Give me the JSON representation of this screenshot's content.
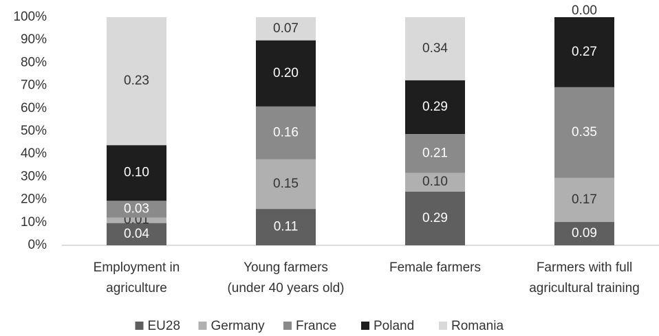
{
  "chart_data": {
    "type": "bar",
    "stacking": "percent",
    "categories": [
      [
        "Employment in",
        "agriculture"
      ],
      [
        "Young farmers",
        "(under 40 years old)"
      ],
      [
        "Female farmers"
      ],
      [
        "Farmers with full",
        "agricultural training"
      ]
    ],
    "series": [
      {
        "name": "EU28",
        "color": "#5f5f5f",
        "values": [
          0.04,
          0.11,
          0.29,
          0.09
        ],
        "value_labels": [
          "0.04",
          "0.11",
          "0.29",
          "0.09"
        ]
      },
      {
        "name": "Germany",
        "color": "#b0b0b0",
        "values": [
          0.01,
          0.15,
          0.1,
          0.17
        ],
        "value_labels": [
          "0.01",
          "0.15",
          "0.10",
          "0.17"
        ]
      },
      {
        "name": "France",
        "color": "#8a8a8a",
        "values": [
          0.03,
          0.16,
          0.21,
          0.35
        ],
        "value_labels": [
          "0.03",
          "0.16",
          "0.21",
          "0.35"
        ]
      },
      {
        "name": "Poland",
        "color": "#1e1e1e",
        "values": [
          0.1,
          0.2,
          0.29,
          0.27
        ],
        "value_labels": [
          "0.10",
          "0.20",
          "0.29",
          "0.27"
        ]
      },
      {
        "name": "Romania",
        "color": "#d9d9d9",
        "values": [
          0.23,
          0.07,
          0.34,
          0.0
        ],
        "value_labels": [
          "0.23",
          "0.07",
          "0.34",
          "0.00"
        ]
      }
    ],
    "ylim": [
      0,
      100
    ],
    "yticks": [
      {
        "value": 0,
        "label": "0%"
      },
      {
        "value": 10,
        "label": "10%"
      },
      {
        "value": 20,
        "label": "20%"
      },
      {
        "value": 30,
        "label": "30%"
      },
      {
        "value": 40,
        "label": "40%"
      },
      {
        "value": 50,
        "label": "50%"
      },
      {
        "value": 60,
        "label": "60%"
      },
      {
        "value": 70,
        "label": "70%"
      },
      {
        "value": 80,
        "label": "80%"
      },
      {
        "value": 90,
        "label": "90%"
      },
      {
        "value": 100,
        "label": "100%"
      }
    ],
    "legend": "bottom"
  }
}
